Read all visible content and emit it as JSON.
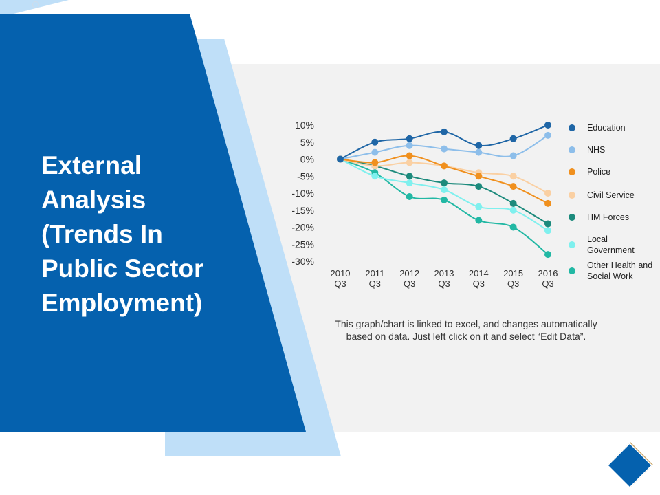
{
  "slide": {
    "title_lines": [
      "External",
      "Analysis",
      "(Trends In",
      "Public Sector",
      "Employment)"
    ],
    "note_lines": [
      "This graph/chart is linked to excel, and changes automatically",
      "based on data. Just left click on it and select “Edit Data”."
    ],
    "colors": {
      "primary_blue": "#0561AE",
      "light_blue": "#BFDFF8",
      "panel_gray": "#F2F2F2",
      "corner_accent": "#C9A66B"
    }
  },
  "chart_data": {
    "type": "line",
    "x": [
      "2010 Q3",
      "2011 Q3",
      "2012 Q3",
      "2013 Q3",
      "2014 Q3",
      "2015 Q3",
      "2016 Q3"
    ],
    "x_tick_lines": [
      [
        "2010",
        "Q3"
      ],
      [
        "2011",
        "Q3"
      ],
      [
        "2012",
        "Q3"
      ],
      [
        "2013",
        "Q3"
      ],
      [
        "2014",
        "Q3"
      ],
      [
        "2015",
        "Q3"
      ],
      [
        "2016",
        "Q3"
      ]
    ],
    "ylim": [
      -30,
      10
    ],
    "yticks": [
      10,
      5,
      0,
      -5,
      -10,
      -15,
      -20,
      -25,
      -30
    ],
    "ytick_labels": [
      "10%",
      "5%",
      "0%",
      "-5%",
      "-10%",
      "-15%",
      "-20%",
      "-25%",
      "-30%"
    ],
    "grid": false,
    "legend": "right",
    "series": [
      {
        "name": "Education",
        "legend_lines": [
          "Education"
        ],
        "color": "#1F66A6",
        "values": [
          0,
          5,
          6,
          8,
          4,
          6,
          10
        ]
      },
      {
        "name": "NHS",
        "legend_lines": [
          "NHS"
        ],
        "color": "#8DBEEA",
        "values": [
          0,
          2,
          4,
          3,
          2,
          1,
          7
        ]
      },
      {
        "name": "Police",
        "legend_lines": [
          "Police"
        ],
        "color": "#F0901E",
        "values": [
          0,
          -1,
          1,
          -2,
          -5,
          -8,
          -13
        ]
      },
      {
        "name": "Civil Service",
        "legend_lines": [
          "Civil Service"
        ],
        "color": "#FAD0A3",
        "values": [
          0,
          -2,
          -1,
          -2,
          -4,
          -5,
          -10
        ]
      },
      {
        "name": "HM Forces",
        "legend_lines": [
          "HM Forces"
        ],
        "color": "#1C8A7C",
        "values": [
          0,
          -2,
          -5,
          -7,
          -8,
          -13,
          -19
        ]
      },
      {
        "name": "Local Government",
        "legend_lines": [
          "Local",
          "Government"
        ],
        "color": "#7FF0EE",
        "values": [
          0,
          -5,
          -7,
          -9,
          -14,
          -15,
          -21
        ]
      },
      {
        "name": "Other Health and Social Work",
        "legend_lines": [
          "Other Health and",
          "Social Work"
        ],
        "color": "#22B8A4",
        "values": [
          0,
          -4,
          -11,
          -12,
          -18,
          -20,
          -28
        ]
      }
    ]
  }
}
